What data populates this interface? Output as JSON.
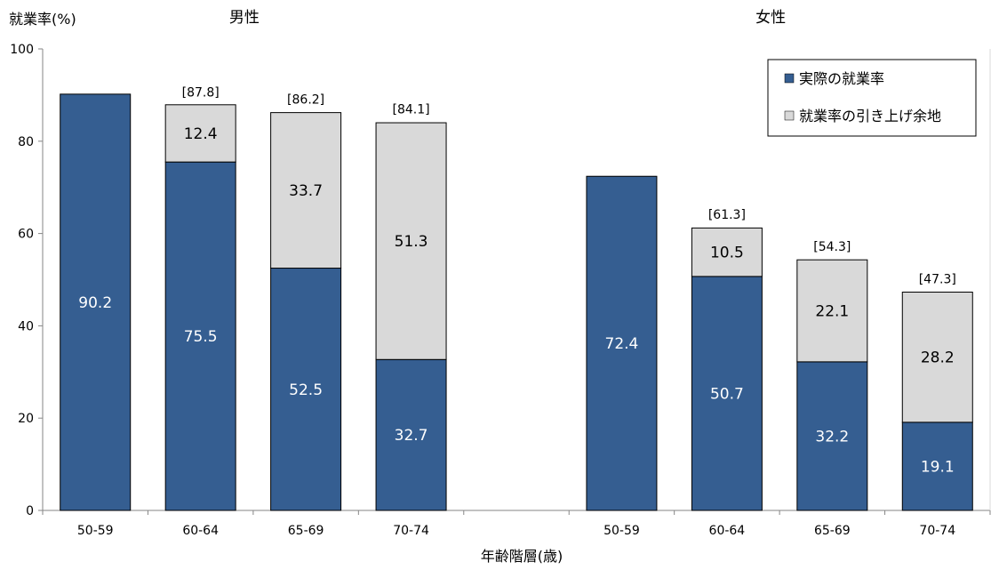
{
  "chart_data": {
    "type": "bar",
    "stacked": true,
    "ylabel": "就業率(%)",
    "xlabel": "年齢階層(歳)",
    "ylim": [
      0,
      100
    ],
    "yticks": [
      "0",
      "20",
      "40",
      "60",
      "80",
      "100"
    ],
    "groups": [
      {
        "title": "男性",
        "categories": [
          "50-59",
          "60-64",
          "65-69",
          "70-74"
        ],
        "actual": [
          90.2,
          75.5,
          52.5,
          32.7
        ],
        "potential": [
          null,
          12.4,
          33.7,
          51.3
        ],
        "totals": [
          null,
          87.8,
          86.2,
          84.1
        ],
        "actual_labels": [
          "90.2",
          "75.5",
          "52.5",
          "32.7"
        ],
        "potential_labels": [
          "",
          "12.4",
          "33.7",
          "51.3"
        ],
        "total_labels": [
          "",
          "[87.8]",
          "[86.2]",
          "[84.1]"
        ]
      },
      {
        "title": "女性",
        "categories": [
          "50-59",
          "60-64",
          "65-69",
          "70-74"
        ],
        "actual": [
          72.4,
          50.7,
          32.2,
          19.1
        ],
        "potential": [
          null,
          10.5,
          22.1,
          28.2
        ],
        "totals": [
          null,
          61.3,
          54.3,
          47.3
        ],
        "actual_labels": [
          "72.4",
          "50.7",
          "32.2",
          "19.1"
        ],
        "potential_labels": [
          "",
          "10.5",
          "22.1",
          "28.2"
        ],
        "total_labels": [
          "",
          "[61.3]",
          "[54.3]",
          "[47.3]"
        ]
      }
    ],
    "series": [
      {
        "name": "実際の就業率",
        "color": "#355E91"
      },
      {
        "name": "就業率の引き上げ余地",
        "color": "#D9D9D9"
      }
    ],
    "legend_position": "top-right",
    "grid": false
  }
}
